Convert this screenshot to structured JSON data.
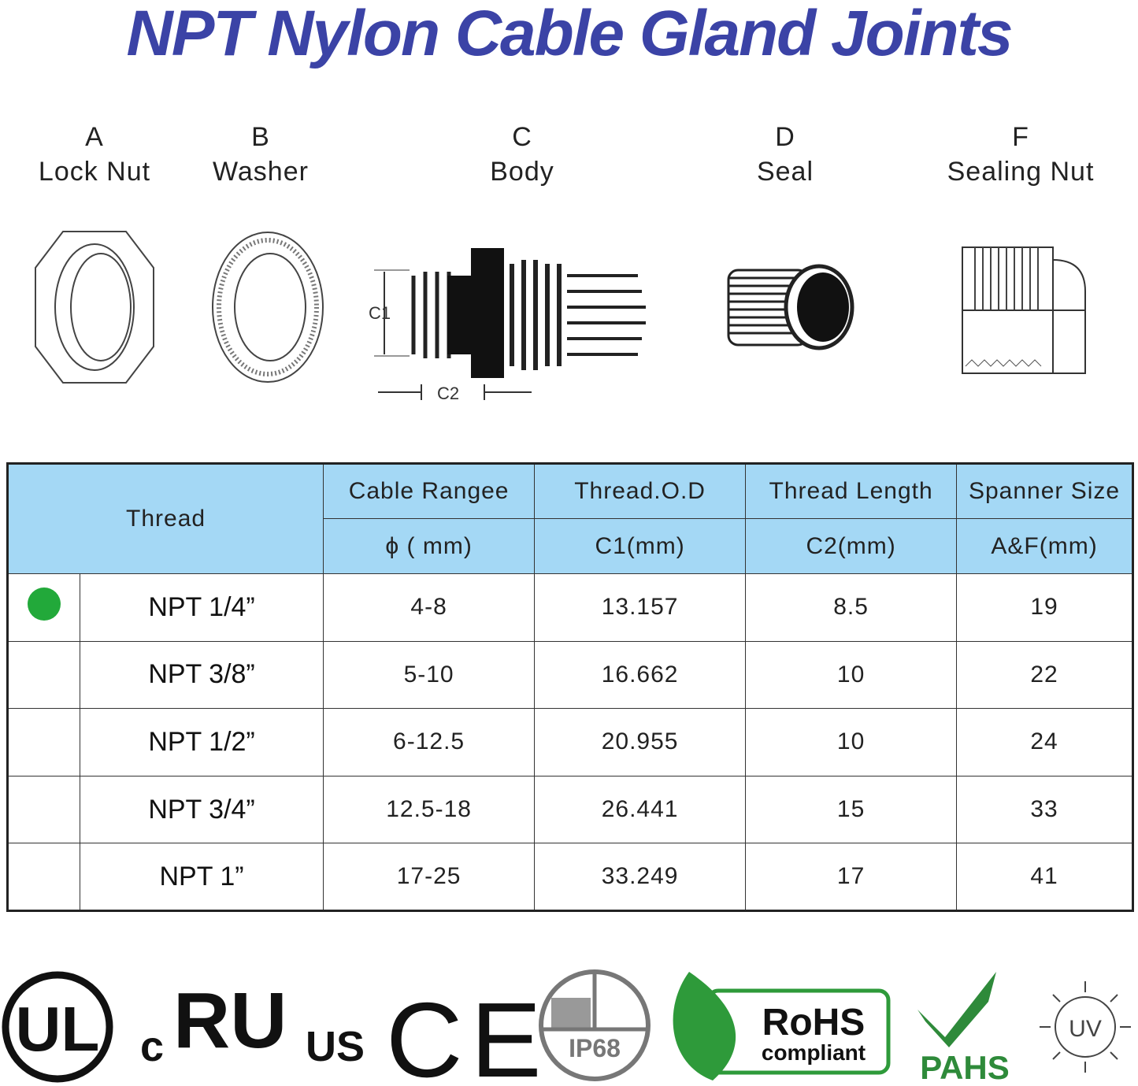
{
  "title": "NPT Nylon Cable Gland Joints",
  "parts": [
    {
      "letter": "A",
      "name": "Lock Nut"
    },
    {
      "letter": "B",
      "name": "Washer"
    },
    {
      "letter": "C",
      "name": "Body"
    },
    {
      "letter": "D",
      "name": "Seal"
    },
    {
      "letter": "F",
      "name": "Sealing Nut"
    }
  ],
  "dimension_labels": {
    "c1": "C1",
    "c2": "C2"
  },
  "table": {
    "header_thread": "Thread",
    "headers_top": [
      "Cable Rangee",
      "Thread.O.D",
      "Thread Length",
      "Spanner Size"
    ],
    "headers_bottom": [
      "ϕ ( mm)",
      "C1(mm)",
      "C2(mm)",
      "A&F(mm)"
    ],
    "rows": [
      {
        "thread": "NPT 1/4”",
        "range": "4-8",
        "od": "13.157",
        "length": "8.5",
        "spanner": "19",
        "marked": true
      },
      {
        "thread": "NPT 3/8”",
        "range": "5-10",
        "od": "16.662",
        "length": "10",
        "spanner": "22"
      },
      {
        "thread": "NPT 1/2”",
        "range": "6-12.5",
        "od": "20.955",
        "length": "10",
        "spanner": "24"
      },
      {
        "thread": "NPT 3/4”",
        "range": "12.5-18",
        "od": "26.441",
        "length": "15",
        "spanner": "33"
      },
      {
        "thread": "NPT 1”",
        "range": "17-25",
        "od": "33.249",
        "length": "17",
        "spanner": "41"
      }
    ],
    "marker_color": "#22a93a",
    "header_color": "#a4d8f5"
  },
  "certifications": {
    "ul": "UL",
    "cru": {
      "c": "c",
      "mark": "RU",
      "us": "US"
    },
    "ce": "CE",
    "ip": "IP68",
    "rohs": {
      "title": "RoHS",
      "sub": "compliant"
    },
    "pahs": "PAHS",
    "uv": "UV"
  },
  "colors": {
    "title": "#3b43a6",
    "green": "#2e9a3a"
  }
}
